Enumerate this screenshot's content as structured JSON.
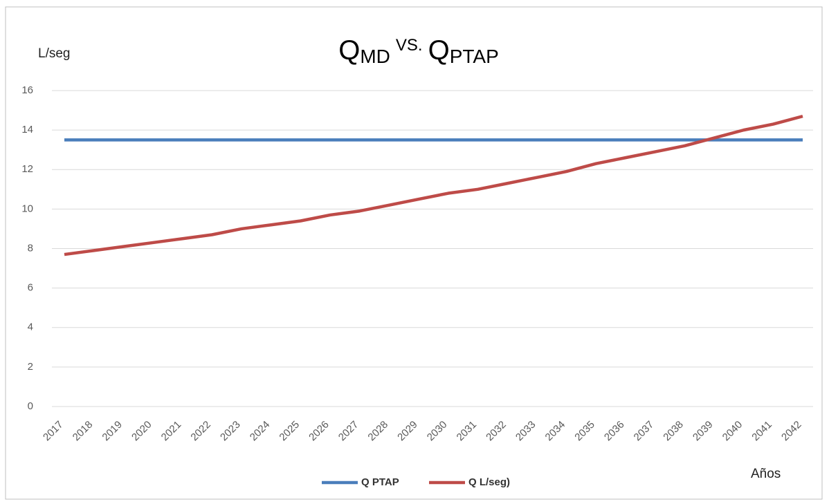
{
  "chart_data": {
    "type": "line",
    "title": [
      {
        "text": "Q"
      },
      {
        "text": "MD",
        "shift": "sub"
      },
      {
        "text": "VS.",
        "shift": "sup"
      },
      {
        "text": "Q"
      },
      {
        "text": "PTAP",
        "shift": "sub"
      }
    ],
    "y_label": "L/seg",
    "x_label": "Años",
    "categories": [
      "2017",
      "2018",
      "2019",
      "2020",
      "2021",
      "2022",
      "2023",
      "2024",
      "2025",
      "2026",
      "2027",
      "2028",
      "2029",
      "2030",
      "2031",
      "2032",
      "2033",
      "2034",
      "2035",
      "2036",
      "2037",
      "2038",
      "2039",
      "2040",
      "2041",
      "2042"
    ],
    "series": [
      {
        "name": "Q PTAP",
        "color": "#4a7ebb",
        "values": [
          13.5,
          13.5,
          13.5,
          13.5,
          13.5,
          13.5,
          13.5,
          13.5,
          13.5,
          13.5,
          13.5,
          13.5,
          13.5,
          13.5,
          13.5,
          13.5,
          13.5,
          13.5,
          13.5,
          13.5,
          13.5,
          13.5,
          13.5,
          13.5,
          13.5,
          13.5
        ]
      },
      {
        "name": "Q L/seg)",
        "color": "#be4b48",
        "values": [
          7.7,
          7.9,
          8.1,
          8.3,
          8.5,
          8.7,
          9.0,
          9.2,
          9.4,
          9.7,
          9.9,
          10.2,
          10.5,
          10.8,
          11.0,
          11.3,
          11.6,
          11.9,
          12.3,
          12.6,
          12.9,
          13.2,
          13.6,
          14.0,
          14.3,
          14.7
        ]
      }
    ],
    "ylim": [
      0,
      16
    ],
    "yticks": [
      0,
      2,
      4,
      6,
      8,
      10,
      12,
      14,
      16
    ],
    "grid": true,
    "legend": "bottom"
  }
}
